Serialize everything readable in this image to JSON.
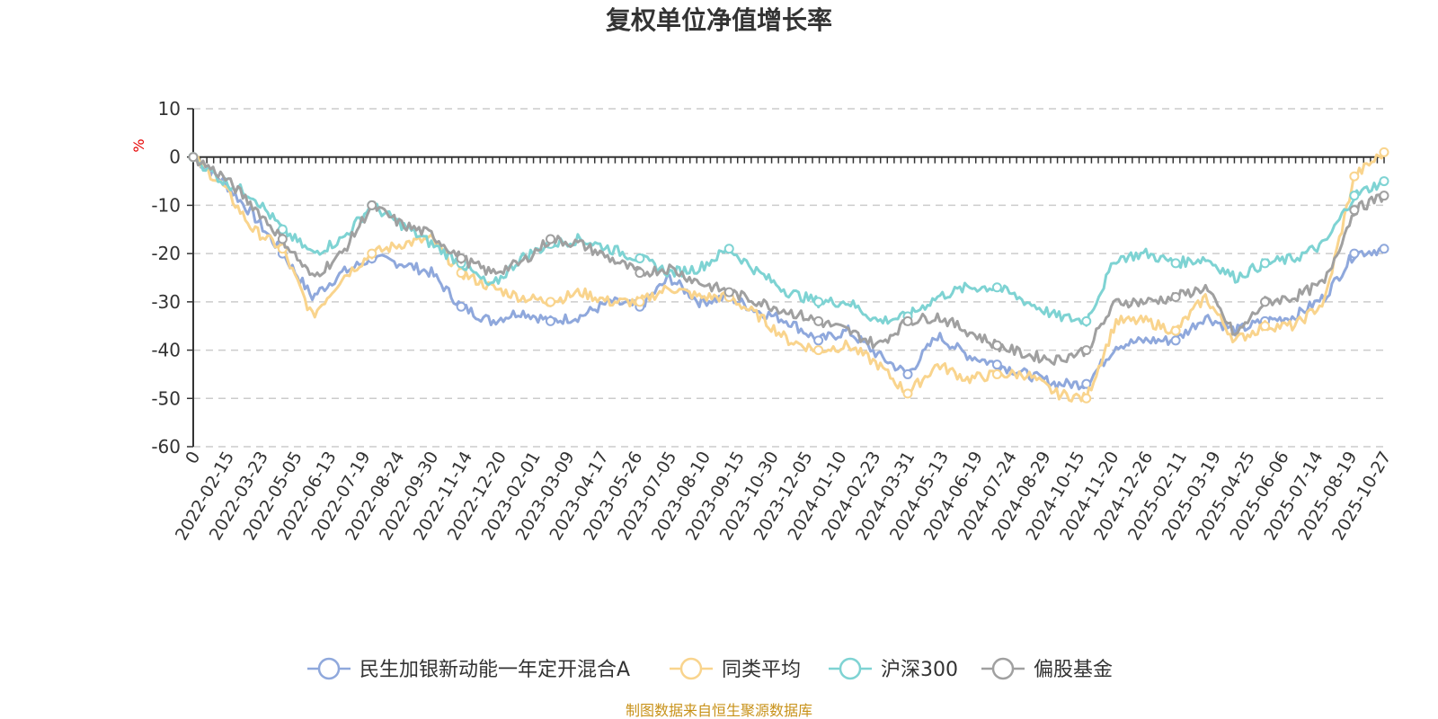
{
  "chart_data": {
    "type": "line",
    "title": "复权单位净值增长率",
    "ylabel": "%",
    "ylim": [
      -60,
      10
    ],
    "yticks": [
      10,
      0,
      -10,
      -20,
      -30,
      -40,
      -50,
      -60
    ],
    "xticks": [
      "0",
      "2022-02-15",
      "2022-03-23",
      "2022-05-05",
      "2022-06-13",
      "2022-07-19",
      "2022-08-24",
      "2022-09-30",
      "2022-11-14",
      "2022-12-20",
      "2023-02-01",
      "2023-03-09",
      "2023-04-17",
      "2023-05-26",
      "2023-07-05",
      "2023-08-10",
      "2023-09-15",
      "2023-10-30",
      "2023-12-05",
      "2024-01-10",
      "2024-02-23",
      "2024-03-31",
      "2024-05-13",
      "2024-06-19",
      "2024-07-24",
      "2024-08-29",
      "2024-10-15",
      "2024-11-20",
      "2024-12-26",
      "2025-02-11",
      "2025-03-19",
      "2025-04-25",
      "2025-06-06",
      "2025-07-14",
      "2025-08-19",
      "2025-10-27"
    ],
    "series": [
      {
        "name": "民生加银新动能一年定开混合A",
        "color": "#8FA8DC",
        "values": [
          0,
          -5,
          -12,
          -20,
          -29,
          -24,
          -21,
          -22,
          -24,
          -31,
          -34,
          -32,
          -34,
          -33,
          -30,
          -31,
          -25,
          -30,
          -29,
          -32,
          -34,
          -38,
          -36,
          -41,
          -45,
          -37,
          -41,
          -43,
          -45,
          -47,
          -47,
          -39,
          -38,
          -38,
          -33,
          -36,
          -34,
          -33,
          -29,
          -20,
          -19
        ]
      },
      {
        "name": "同类平均",
        "color": "#F9D48D",
        "values": [
          0,
          -6,
          -15,
          -19,
          -33,
          -25,
          -20,
          -18,
          -17,
          -24,
          -27,
          -29,
          -30,
          -28,
          -30,
          -30,
          -27,
          -29,
          -29,
          -33,
          -38,
          -40,
          -39,
          -43,
          -49,
          -43,
          -46,
          -45,
          -45,
          -49,
          -50,
          -34,
          -34,
          -36,
          -29,
          -38,
          -35,
          -35,
          -30,
          -4,
          1
        ]
      },
      {
        "name": "沪深300",
        "color": "#7ED3D3",
        "values": [
          0,
          -5,
          -8,
          -15,
          -20,
          -17,
          -10,
          -14,
          -18,
          -22,
          -27,
          -21,
          -18,
          -17,
          -19,
          -21,
          -24,
          -23,
          -19,
          -24,
          -28,
          -30,
          -30,
          -34,
          -33,
          -29,
          -27,
          -27,
          -30,
          -33,
          -34,
          -21,
          -20,
          -22,
          -21,
          -25,
          -22,
          -21,
          -18,
          -8,
          -5
        ]
      },
      {
        "name": "偏股基金",
        "color": "#A0A0A0",
        "values": [
          0,
          -4,
          -10,
          -17,
          -25,
          -20,
          -10,
          -14,
          -16,
          -21,
          -24,
          -22,
          -17,
          -18,
          -21,
          -24,
          -23,
          -26,
          -28,
          -30,
          -32,
          -34,
          -36,
          -39,
          -34,
          -33,
          -36,
          -39,
          -41,
          -42,
          -40,
          -30,
          -30,
          -29,
          -27,
          -37,
          -30,
          -29,
          -26,
          -11,
          -8
        ]
      }
    ],
    "legend": "bottom-center"
  },
  "footer": {
    "source": "制图数据来自恒生聚源数据库"
  }
}
